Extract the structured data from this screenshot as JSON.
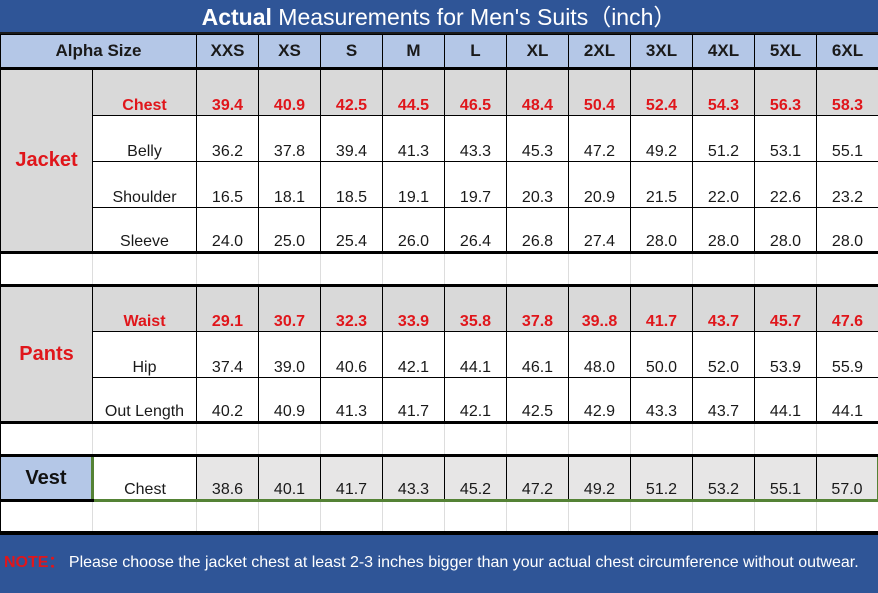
{
  "title": {
    "bold": "Actual",
    "rest": " Measurements for Men's Suits（inch）"
  },
  "header": {
    "label": "Alpha Size",
    "sizes": [
      "XXS",
      "XS",
      "S",
      "M",
      "L",
      "XL",
      "2XL",
      "3XL",
      "4XL",
      "5XL",
      "6XL"
    ]
  },
  "jacket": {
    "category": "Jacket",
    "rows": [
      {
        "label": "Chest",
        "highlight": true,
        "values": [
          "39.4",
          "40.9",
          "42.5",
          "44.5",
          "46.5",
          "48.4",
          "50.4",
          "52.4",
          "54.3",
          "56.3",
          "58.3"
        ]
      },
      {
        "label": "Belly",
        "highlight": false,
        "values": [
          "36.2",
          "37.8",
          "39.4",
          "41.3",
          "43.3",
          "45.3",
          "47.2",
          "49.2",
          "51.2",
          "53.1",
          "55.1"
        ]
      },
      {
        "label": "Shoulder",
        "highlight": false,
        "values": [
          "16.5",
          "18.1",
          "18.5",
          "19.1",
          "19.7",
          "20.3",
          "20.9",
          "21.5",
          "22.0",
          "22.6",
          "23.2"
        ]
      },
      {
        "label": "Sleeve",
        "highlight": false,
        "values": [
          "24.0",
          "25.0",
          "25.4",
          "26.0",
          "26.4",
          "26.8",
          "27.4",
          "28.0",
          "28.0",
          "28.0",
          "28.0"
        ]
      }
    ]
  },
  "pants": {
    "category": "Pants",
    "rows": [
      {
        "label": "Waist",
        "highlight": true,
        "values": [
          "29.1",
          "30.7",
          "32.3",
          "33.9",
          "35.8",
          "37.8",
          "39..8",
          "41.7",
          "43.7",
          "45.7",
          "47.6"
        ]
      },
      {
        "label": "Hip",
        "highlight": false,
        "values": [
          "37.4",
          "39.0",
          "40.6",
          "42.1",
          "44.1",
          "46.1",
          "48.0",
          "50.0",
          "52.0",
          "53.9",
          "55.9"
        ]
      },
      {
        "label": "Out Length",
        "highlight": false,
        "values": [
          "40.2",
          "40.9",
          "41.3",
          "41.7",
          "42.1",
          "42.5",
          "42.9",
          "43.3",
          "43.7",
          "44.1",
          "44.1"
        ]
      }
    ]
  },
  "vest": {
    "category": "Vest",
    "rows": [
      {
        "label": "Chest",
        "highlight": false,
        "values": [
          "38.6",
          "40.1",
          "41.7",
          "43.3",
          "45.2",
          "47.2",
          "49.2",
          "51.2",
          "53.2",
          "55.1",
          "57.0"
        ]
      }
    ]
  },
  "note": {
    "label": "NOTE：",
    "text": " Please choose the jacket chest at least 2-3 inches bigger than your actual chest circumference without outwear."
  },
  "colors": {
    "title_bg": "#2f5597",
    "header_bg": "#b4c7e7",
    "highlight_text": "#e0161b",
    "highlight_bg": "#d9d9d9",
    "vest_border": "#548235"
  }
}
